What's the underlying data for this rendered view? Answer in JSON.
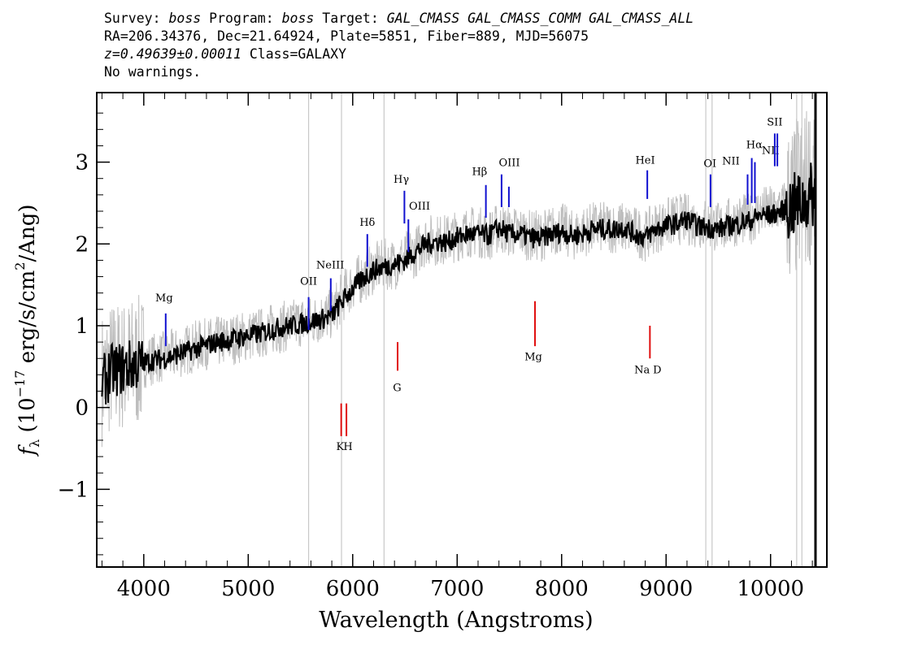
{
  "header": {
    "line1": {
      "survey_label": "Survey: ",
      "survey": "boss",
      "program_label": " Program: ",
      "program": "boss",
      "target_label": " Target: ",
      "target": "GAL_CMASS GAL_CMASS_COMM GAL_CMASS_ALL"
    },
    "line2": "RA=206.34376, Dec=21.64924, Plate=5851, Fiber=889, MJD=56075",
    "line3": {
      "redshift": "z=0.49639±0.00011",
      "class": " Class=GALAXY"
    },
    "line4": "No warnings."
  },
  "chart_data": {
    "type": "line",
    "xlabel": "Wavelength (Angstroms)",
    "ylabel": "f_λ (10^-17 erg/s/cm^2/Ang)",
    "xlim": [
      3550,
      10430
    ],
    "ylim": [
      -1.95,
      3.85
    ],
    "xticks": [
      4000,
      5000,
      6000,
      7000,
      8000,
      9000,
      10000
    ],
    "yticks": [
      -1,
      0,
      1,
      2,
      3
    ],
    "grid": false,
    "series": [
      {
        "role": "flux",
        "color": "#bdbdbd",
        "x": [
          3600,
          3700,
          3800,
          3900,
          4000,
          4100,
          4200,
          4300,
          4400,
          4500,
          4600,
          4700,
          4800,
          4900,
          5000,
          5100,
          5200,
          5300,
          5400,
          5500,
          5600,
          5700,
          5800,
          5900,
          6000,
          6100,
          6200,
          6300,
          6400,
          6500,
          6600,
          6700,
          6800,
          6900,
          7000,
          7100,
          7200,
          7300,
          7400,
          7500,
          7600,
          7700,
          7800,
          7900,
          8000,
          8100,
          8200,
          8300,
          8400,
          8500,
          8600,
          8700,
          8800,
          8900,
          9000,
          9100,
          9200,
          9300,
          9400,
          9500,
          9600,
          9700,
          9800,
          9900,
          10000,
          10100,
          10200,
          10300,
          10400
        ],
        "y": [
          0.35,
          0.5,
          0.5,
          0.55,
          0.55,
          0.6,
          0.62,
          0.65,
          0.7,
          0.75,
          0.78,
          0.8,
          0.82,
          0.85,
          0.88,
          0.9,
          0.95,
          0.98,
          1.0,
          1.05,
          1.05,
          1.1,
          1.15,
          1.35,
          1.5,
          1.6,
          1.7,
          1.75,
          1.75,
          1.85,
          1.9,
          2.05,
          2.05,
          2.05,
          2.1,
          2.15,
          2.15,
          2.1,
          2.2,
          2.15,
          2.15,
          2.1,
          2.1,
          2.15,
          2.2,
          2.1,
          2.15,
          2.2,
          2.2,
          2.2,
          2.2,
          2.15,
          2.1,
          2.2,
          2.25,
          2.3,
          2.3,
          2.25,
          2.25,
          2.2,
          2.25,
          2.3,
          2.3,
          2.4,
          2.4,
          2.45,
          2.5,
          2.6,
          2.8
        ]
      },
      {
        "role": "model",
        "color": "#000000",
        "x": [
          3600,
          3700,
          3800,
          3900,
          4000,
          4100,
          4200,
          4300,
          4400,
          4500,
          4600,
          4700,
          4800,
          4900,
          5000,
          5100,
          5200,
          5300,
          5400,
          5500,
          5600,
          5700,
          5800,
          5900,
          6000,
          6100,
          6200,
          6300,
          6400,
          6500,
          6600,
          6700,
          6800,
          6900,
          7000,
          7100,
          7200,
          7300,
          7400,
          7500,
          7600,
          7700,
          7800,
          7900,
          8000,
          8100,
          8200,
          8300,
          8400,
          8500,
          8600,
          8700,
          8800,
          8900,
          9000,
          9100,
          9200,
          9300,
          9400,
          9500,
          9600,
          9700,
          9800,
          9900,
          10000,
          10100,
          10200,
          10300,
          10400
        ],
        "y": [
          0.3,
          0.45,
          0.48,
          0.52,
          0.55,
          0.58,
          0.6,
          0.64,
          0.68,
          0.72,
          0.76,
          0.8,
          0.82,
          0.85,
          0.88,
          0.9,
          0.94,
          0.98,
          1.0,
          1.02,
          1.05,
          1.08,
          1.12,
          1.3,
          1.45,
          1.58,
          1.68,
          1.72,
          1.75,
          1.8,
          1.9,
          2.0,
          2.03,
          2.02,
          2.08,
          2.12,
          2.12,
          2.1,
          2.2,
          2.12,
          2.12,
          2.08,
          2.06,
          2.12,
          2.15,
          2.1,
          2.12,
          2.18,
          2.18,
          2.18,
          2.2,
          2.12,
          2.08,
          2.18,
          2.22,
          2.25,
          2.3,
          2.22,
          2.2,
          2.18,
          2.22,
          2.25,
          2.28,
          2.35,
          2.35,
          2.4,
          2.45,
          2.5,
          2.6
        ]
      }
    ],
    "emission_lines": [
      {
        "label": "Mg",
        "x": 4210,
        "y0": 0.75,
        "y1": 1.15,
        "lx": 4195,
        "ly": 1.3
      },
      {
        "label": "OII",
        "x": 5578,
        "y0": 0.95,
        "y1": 1.35,
        "lx": 5578,
        "ly": 1.5
      },
      {
        "label": "NeIII",
        "x": 5790,
        "y0": 1.18,
        "y1": 1.58,
        "lx": 5785,
        "ly": 1.7
      },
      {
        "label": "Hδ",
        "x": 6140,
        "y0": 1.72,
        "y1": 2.12,
        "lx": 6140,
        "ly": 2.22
      },
      {
        "label": "Hγ",
        "x": 6495,
        "y0": 2.25,
        "y1": 2.65,
        "lx": 6465,
        "ly": 2.75
      },
      {
        "label": "OIII",
        "x": 6533,
        "y0": 1.9,
        "y1": 2.3,
        "lx": 6640,
        "ly": 2.42
      },
      {
        "label": "Hβ",
        "x": 7275,
        "y0": 2.32,
        "y1": 2.72,
        "lx": 7215,
        "ly": 2.84
      },
      {
        "label": "OIII",
        "x": 7425,
        "y0": 2.45,
        "y1": 2.85,
        "lx": 7500,
        "ly": 2.95
      },
      {
        "label": "OIII",
        "x": 7495,
        "y0": 2.45,
        "y1": 2.7
      },
      {
        "label": "HeI",
        "x": 8820,
        "y0": 2.55,
        "y1": 2.9,
        "lx": 8800,
        "ly": 2.98
      },
      {
        "label": "OI",
        "x": 9425,
        "y0": 2.45,
        "y1": 2.85,
        "lx": 9420,
        "ly": 2.94
      },
      {
        "label": "NII",
        "x": 9780,
        "y0": 2.48,
        "y1": 2.85,
        "lx": 9620,
        "ly": 2.97
      },
      {
        "label": "Hα",
        "x": 9820,
        "y0": 2.5,
        "y1": 3.05,
        "lx": 9845,
        "ly": 3.17
      },
      {
        "label": "NII",
        "x": 9850,
        "y0": 2.5,
        "y1": 3.0,
        "lx": 10000,
        "ly": 3.1
      },
      {
        "label": "SII",
        "x": 10040,
        "y0": 2.95,
        "y1": 3.35,
        "lx": 10040,
        "ly": 3.45
      },
      {
        "label": "SII",
        "x": 10065,
        "y0": 2.95,
        "y1": 3.35
      }
    ],
    "absorption_lines": [
      {
        "label": "K",
        "x": 5890,
        "y0": -0.35,
        "y1": 0.05,
        "lx": 5880,
        "ly": -0.52
      },
      {
        "label": "H",
        "x": 5940,
        "y0": -0.35,
        "y1": 0.05,
        "lx": 5955,
        "ly": -0.52
      },
      {
        "label": "G",
        "x": 6430,
        "y0": 0.45,
        "y1": 0.8,
        "lx": 6425,
        "ly": 0.2
      },
      {
        "label": "Mg",
        "x": 7745,
        "y0": 0.75,
        "y1": 1.3,
        "lx": 7730,
        "ly": 0.58
      },
      {
        "label": "Na",
        "x": 8845,
        "y0": 0.6,
        "y1": 1.0,
        "lx": 8770,
        "ly": 0.42
      },
      {
        "label": "D",
        "x": 8845,
        "lx": 8915,
        "ly": 0.42
      }
    ],
    "line_colors": {
      "emission": "#1010d0",
      "absorption": "#e01010"
    }
  }
}
